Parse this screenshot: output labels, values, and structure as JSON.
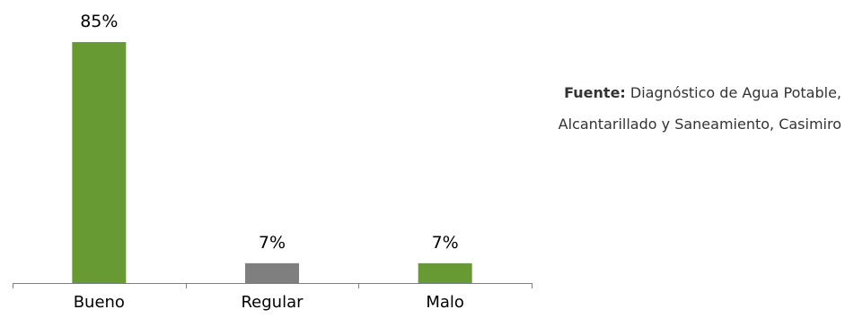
{
  "chart_data": {
    "type": "bar",
    "categories": [
      "Bueno",
      "Regular",
      "Malo"
    ],
    "values": [
      85,
      7,
      7
    ],
    "value_labels": [
      "85%",
      "7%",
      "7%"
    ],
    "ylim": [
      0,
      85
    ],
    "grid": false,
    "colors": [
      "#689a34",
      "#7f7f7f",
      "#689a34"
    ]
  },
  "source": {
    "label": "Fuente:",
    "line1": " Diagnóstico de Agua Potable,",
    "line2": "Alcantarillado y Saneamiento, Casimiro"
  }
}
